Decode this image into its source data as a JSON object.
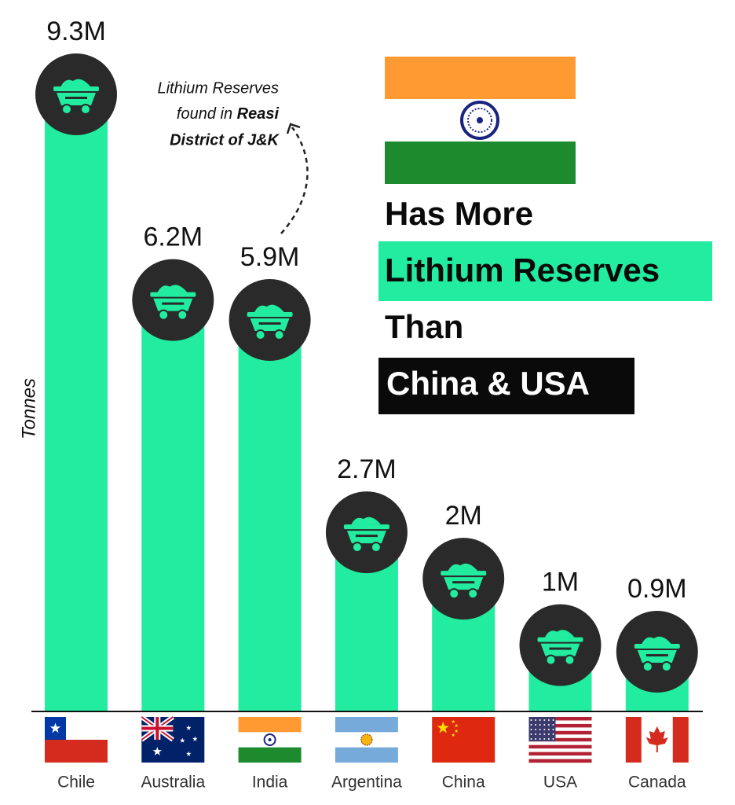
{
  "chart_data": {
    "type": "bar",
    "y_label": "Tonnes",
    "categories": [
      "Chile",
      "Australia",
      "India",
      "Argentina",
      "China",
      "USA",
      "Canada"
    ],
    "values": [
      9.3,
      6.2,
      5.9,
      2.7,
      2,
      1,
      0.9
    ],
    "value_labels": [
      "9.3M",
      "6.2M",
      "5.9M",
      "2.7M",
      "2M",
      "1M",
      "0.9M"
    ],
    "color": "#21ec9f",
    "annotation": {
      "line1": "Lithium Reserves",
      "line2": "found in",
      "line2_bold": "Reasi",
      "line3_bold": "District of J&K"
    },
    "headline": {
      "line1": "Has More",
      "line2": "Lithium Reserves",
      "line3": "Than",
      "line4": "China & USA"
    }
  }
}
